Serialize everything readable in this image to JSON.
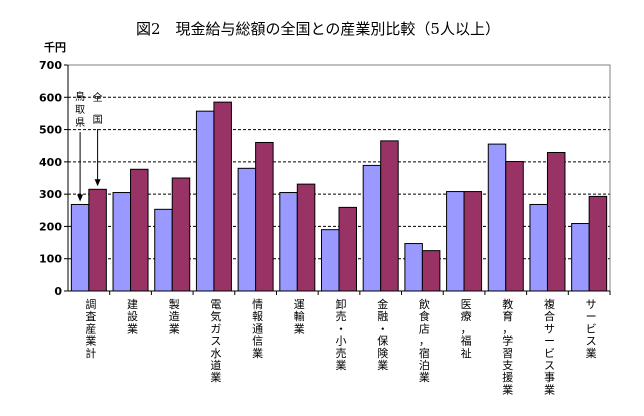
{
  "chart_data": {
    "type": "bar",
    "title": "図2　現金給与総額の全国との産業別比較（5人以上）",
    "ylabel": "千円",
    "ylim": [
      0,
      700
    ],
    "yticks": [
      0,
      100,
      200,
      300,
      400,
      500,
      600,
      700
    ],
    "grid": true,
    "categories": [
      "調査産業計",
      "建設業",
      "製造業",
      "電気ガス水道業",
      "情報通信業",
      "運輸業",
      "卸売・小売業",
      "金融・保険業",
      "飲食店，宿泊業",
      "医療，福祉",
      "教育，学習支援業",
      "複合サービス事業",
      "サービス業"
    ],
    "series": [
      {
        "name": "鳥取県",
        "color": "#9999ff",
        "values": [
          268,
          305,
          253,
          557,
          380,
          305,
          190,
          389,
          147,
          308,
          455,
          268,
          209
        ]
      },
      {
        "name": "全国",
        "color": "#993366",
        "values": [
          315,
          377,
          350,
          585,
          460,
          331,
          259,
          465,
          125,
          308,
          401,
          429,
          293
        ]
      }
    ],
    "annotations": [
      {
        "text": "鳥取県",
        "series": 0,
        "category": 0
      },
      {
        "text": "全国",
        "series": 1,
        "category": 0
      }
    ]
  }
}
